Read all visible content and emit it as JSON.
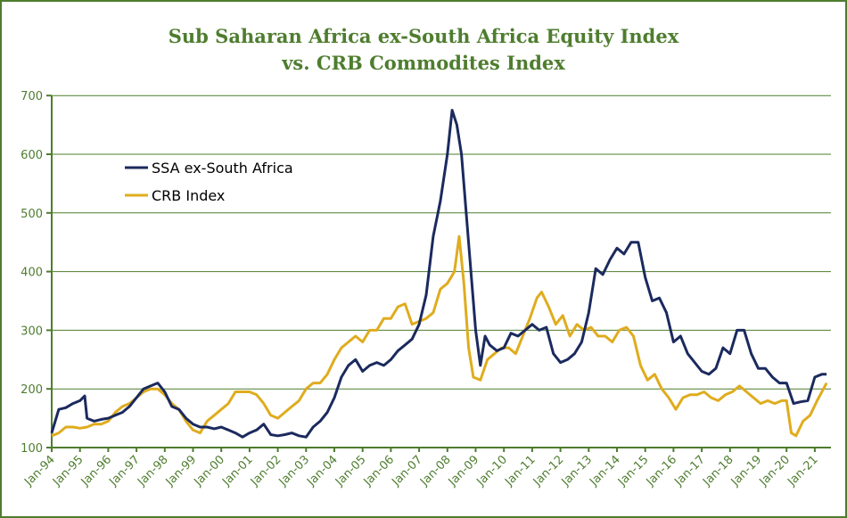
{
  "chart_data": {
    "type": "line",
    "title": "Sub Saharan Africa ex-South Africa Equity Index",
    "subtitle": "vs. CRB Commodites Index",
    "xlabel": "",
    "ylabel": "",
    "ylim": [
      100,
      700
    ],
    "yticks": [
      "100",
      "200",
      "300",
      "400",
      "500",
      "600",
      "700"
    ],
    "xticks": [
      "Jan-94",
      "Jan-95",
      "Jan-96",
      "Jan-97",
      "Jan-98",
      "Jan-99",
      "Jan-00",
      "Jan-01",
      "Jan-02",
      "Jan-03",
      "Jan-04",
      "Jan-05",
      "Jan-06",
      "Jan-07",
      "Jan-08",
      "Jan-09",
      "Jan-10",
      "Jan-11",
      "Jan-12",
      "Jan-13",
      "Jan-14",
      "Jan-15",
      "Jan-16",
      "Jan-17",
      "Jan-18",
      "Jan-19",
      "Jan-20",
      "Jan-21"
    ],
    "grid": "horizontal",
    "legend_position": "top-left",
    "series": [
      {
        "name": "SSA ex-South Africa",
        "color": "#1b2a5e",
        "points": [
          [
            "1994-01",
            125
          ],
          [
            "1994-04",
            165
          ],
          [
            "1994-07",
            168
          ],
          [
            "1994-10",
            175
          ],
          [
            "1995-01",
            180
          ],
          [
            "1995-03",
            188
          ],
          [
            "1995-04",
            150
          ],
          [
            "1995-07",
            145
          ],
          [
            "1995-10",
            148
          ],
          [
            "1996-01",
            150
          ],
          [
            "1996-04",
            155
          ],
          [
            "1996-07",
            160
          ],
          [
            "1996-10",
            170
          ],
          [
            "1997-01",
            185
          ],
          [
            "1997-04",
            200
          ],
          [
            "1997-07",
            205
          ],
          [
            "1997-10",
            210
          ],
          [
            "1998-01",
            195
          ],
          [
            "1998-04",
            170
          ],
          [
            "1998-07",
            165
          ],
          [
            "1998-10",
            150
          ],
          [
            "1999-01",
            140
          ],
          [
            "1999-04",
            135
          ],
          [
            "1999-07",
            135
          ],
          [
            "1999-10",
            132
          ],
          [
            "2000-01",
            135
          ],
          [
            "2000-04",
            130
          ],
          [
            "2000-07",
            125
          ],
          [
            "2000-10",
            118
          ],
          [
            "2001-01",
            125
          ],
          [
            "2001-04",
            130
          ],
          [
            "2001-07",
            140
          ],
          [
            "2001-10",
            122
          ],
          [
            "2002-01",
            120
          ],
          [
            "2002-04",
            122
          ],
          [
            "2002-07",
            125
          ],
          [
            "2002-10",
            120
          ],
          [
            "2003-01",
            118
          ],
          [
            "2003-04",
            135
          ],
          [
            "2003-07",
            145
          ],
          [
            "2003-10",
            160
          ],
          [
            "2004-01",
            185
          ],
          [
            "2004-04",
            220
          ],
          [
            "2004-07",
            240
          ],
          [
            "2004-10",
            250
          ],
          [
            "2005-01",
            230
          ],
          [
            "2005-04",
            240
          ],
          [
            "2005-07",
            245
          ],
          [
            "2005-10",
            240
          ],
          [
            "2006-01",
            250
          ],
          [
            "2006-04",
            265
          ],
          [
            "2006-07",
            275
          ],
          [
            "2006-10",
            285
          ],
          [
            "2007-01",
            310
          ],
          [
            "2007-04",
            360
          ],
          [
            "2007-07",
            460
          ],
          [
            "2007-10",
            520
          ],
          [
            "2008-01",
            600
          ],
          [
            "2008-03",
            675
          ],
          [
            "2008-05",
            650
          ],
          [
            "2008-07",
            600
          ],
          [
            "2008-09",
            500
          ],
          [
            "2008-11",
            400
          ],
          [
            "2009-01",
            300
          ],
          [
            "2009-03",
            240
          ],
          [
            "2009-05",
            290
          ],
          [
            "2009-07",
            275
          ],
          [
            "2009-10",
            265
          ],
          [
            "2010-01",
            270
          ],
          [
            "2010-04",
            295
          ],
          [
            "2010-07",
            290
          ],
          [
            "2010-10",
            300
          ],
          [
            "2011-01",
            310
          ],
          [
            "2011-04",
            300
          ],
          [
            "2011-07",
            305
          ],
          [
            "2011-10",
            260
          ],
          [
            "2012-01",
            245
          ],
          [
            "2012-04",
            250
          ],
          [
            "2012-07",
            260
          ],
          [
            "2012-10",
            280
          ],
          [
            "2013-01",
            330
          ],
          [
            "2013-04",
            405
          ],
          [
            "2013-07",
            395
          ],
          [
            "2013-10",
            420
          ],
          [
            "2014-01",
            440
          ],
          [
            "2014-04",
            430
          ],
          [
            "2014-07",
            450
          ],
          [
            "2014-10",
            450
          ],
          [
            "2015-01",
            390
          ],
          [
            "2015-04",
            350
          ],
          [
            "2015-07",
            355
          ],
          [
            "2015-10",
            330
          ],
          [
            "2016-01",
            280
          ],
          [
            "2016-04",
            290
          ],
          [
            "2016-07",
            260
          ],
          [
            "2016-10",
            245
          ],
          [
            "2017-01",
            230
          ],
          [
            "2017-04",
            225
          ],
          [
            "2017-07",
            235
          ],
          [
            "2017-10",
            270
          ],
          [
            "2018-01",
            260
          ],
          [
            "2018-04",
            300
          ],
          [
            "2018-07",
            300
          ],
          [
            "2018-10",
            260
          ],
          [
            "2019-01",
            235
          ],
          [
            "2019-04",
            235
          ],
          [
            "2019-07",
            220
          ],
          [
            "2019-10",
            210
          ],
          [
            "2020-01",
            210
          ],
          [
            "2020-04",
            175
          ],
          [
            "2020-07",
            178
          ],
          [
            "2020-10",
            180
          ],
          [
            "2021-01",
            220
          ],
          [
            "2021-04",
            225
          ],
          [
            "2021-06",
            225
          ]
        ]
      },
      {
        "name": "CRB Index",
        "color": "#dfac1e",
        "points": [
          [
            "1994-01",
            120
          ],
          [
            "1994-04",
            125
          ],
          [
            "1994-07",
            135
          ],
          [
            "1994-10",
            135
          ],
          [
            "1995-01",
            133
          ],
          [
            "1995-04",
            135
          ],
          [
            "1995-07",
            140
          ],
          [
            "1995-10",
            140
          ],
          [
            "1996-01",
            145
          ],
          [
            "1996-04",
            160
          ],
          [
            "1996-07",
            170
          ],
          [
            "1996-10",
            175
          ],
          [
            "1997-01",
            185
          ],
          [
            "1997-04",
            195
          ],
          [
            "1997-07",
            200
          ],
          [
            "1997-10",
            200
          ],
          [
            "1998-01",
            190
          ],
          [
            "1998-04",
            175
          ],
          [
            "1998-07",
            165
          ],
          [
            "1998-10",
            145
          ],
          [
            "1999-01",
            130
          ],
          [
            "1999-04",
            125
          ],
          [
            "1999-07",
            145
          ],
          [
            "1999-10",
            155
          ],
          [
            "2000-01",
            165
          ],
          [
            "2000-04",
            175
          ],
          [
            "2000-07",
            195
          ],
          [
            "2000-10",
            195
          ],
          [
            "2001-01",
            195
          ],
          [
            "2001-04",
            190
          ],
          [
            "2001-07",
            175
          ],
          [
            "2001-10",
            155
          ],
          [
            "2002-01",
            150
          ],
          [
            "2002-04",
            160
          ],
          [
            "2002-07",
            170
          ],
          [
            "2002-10",
            180
          ],
          [
            "2003-01",
            200
          ],
          [
            "2003-04",
            210
          ],
          [
            "2003-07",
            210
          ],
          [
            "2003-10",
            225
          ],
          [
            "2004-01",
            250
          ],
          [
            "2004-04",
            270
          ],
          [
            "2004-07",
            280
          ],
          [
            "2004-10",
            290
          ],
          [
            "2005-01",
            280
          ],
          [
            "2005-04",
            300
          ],
          [
            "2005-07",
            300
          ],
          [
            "2005-10",
            320
          ],
          [
            "2006-01",
            320
          ],
          [
            "2006-04",
            340
          ],
          [
            "2006-07",
            345
          ],
          [
            "2006-10",
            310
          ],
          [
            "2007-01",
            315
          ],
          [
            "2007-04",
            320
          ],
          [
            "2007-07",
            330
          ],
          [
            "2007-10",
            370
          ],
          [
            "2008-01",
            380
          ],
          [
            "2008-04",
            400
          ],
          [
            "2008-06",
            460
          ],
          [
            "2008-08",
            380
          ],
          [
            "2008-10",
            270
          ],
          [
            "2008-12",
            220
          ],
          [
            "2009-03",
            215
          ],
          [
            "2009-06",
            250
          ],
          [
            "2009-09",
            260
          ],
          [
            "2009-12",
            270
          ],
          [
            "2010-03",
            270
          ],
          [
            "2010-06",
            260
          ],
          [
            "2010-09",
            290
          ],
          [
            "2010-12",
            320
          ],
          [
            "2011-03",
            355
          ],
          [
            "2011-05",
            365
          ],
          [
            "2011-08",
            340
          ],
          [
            "2011-11",
            310
          ],
          [
            "2012-02",
            325
          ],
          [
            "2012-05",
            290
          ],
          [
            "2012-08",
            310
          ],
          [
            "2012-11",
            300
          ],
          [
            "2013-02",
            305
          ],
          [
            "2013-05",
            290
          ],
          [
            "2013-08",
            290
          ],
          [
            "2013-11",
            280
          ],
          [
            "2014-02",
            300
          ],
          [
            "2014-05",
            305
          ],
          [
            "2014-08",
            290
          ],
          [
            "2014-11",
            240
          ],
          [
            "2015-02",
            215
          ],
          [
            "2015-05",
            225
          ],
          [
            "2015-08",
            200
          ],
          [
            "2015-11",
            185
          ],
          [
            "2016-02",
            165
          ],
          [
            "2016-05",
            185
          ],
          [
            "2016-08",
            190
          ],
          [
            "2016-11",
            190
          ],
          [
            "2017-02",
            195
          ],
          [
            "2017-05",
            185
          ],
          [
            "2017-08",
            180
          ],
          [
            "2017-11",
            190
          ],
          [
            "2018-02",
            195
          ],
          [
            "2018-05",
            205
          ],
          [
            "2018-08",
            195
          ],
          [
            "2018-11",
            185
          ],
          [
            "2019-02",
            175
          ],
          [
            "2019-05",
            180
          ],
          [
            "2019-08",
            175
          ],
          [
            "2019-11",
            180
          ],
          [
            "2020-01",
            180
          ],
          [
            "2020-03",
            125
          ],
          [
            "2020-05",
            120
          ],
          [
            "2020-08",
            145
          ],
          [
            "2020-11",
            155
          ],
          [
            "2021-02",
            180
          ],
          [
            "2021-06",
            210
          ]
        ]
      }
    ]
  }
}
